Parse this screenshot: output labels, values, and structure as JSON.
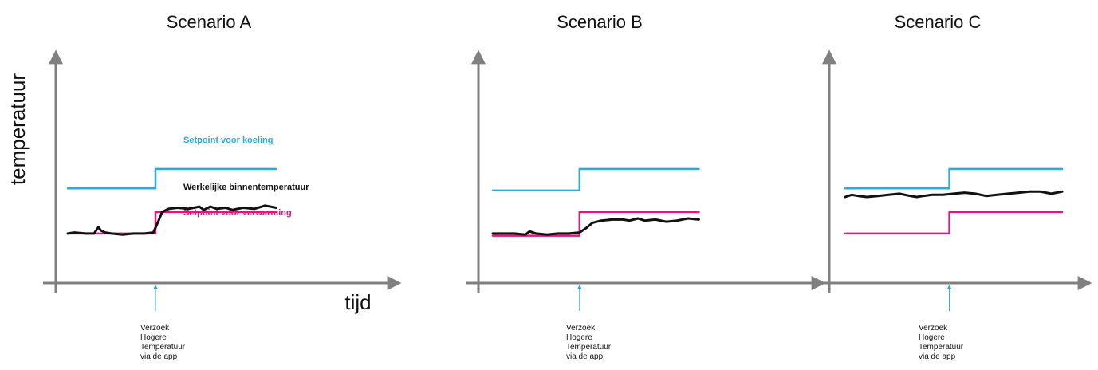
{
  "colors": {
    "axis": "#808080",
    "cooling": "#29abe2",
    "heating": "#e6157a",
    "actual": "#111111",
    "request": "#29abe2"
  },
  "y_axis_label": "temperatuur",
  "x_axis_label": "tijd",
  "request_label": [
    "Verzoek",
    "Hogere",
    "Temperatuur",
    "via de app"
  ],
  "legend_labels": {
    "cooling": "Setpoint voor koeling",
    "actual": "Werkelijke binnentemperatuur",
    "heating": "Setpoint voor verwarming"
  },
  "chart_data": [
    {
      "type": "line",
      "title": "Scenario A",
      "xlim": [
        0,
        10
      ],
      "ylim": [
        0,
        10
      ],
      "request_x": 4.0,
      "series": [
        {
          "name": "Setpoint voor koeling",
          "role": "cooling",
          "x": [
            0,
            4.0,
            4.0,
            9.5
          ],
          "y": [
            4.4,
            4.4,
            5.3,
            5.3
          ]
        },
        {
          "name": "Setpoint voor verwarming",
          "role": "heating",
          "x": [
            0,
            4.0,
            4.0,
            9.5
          ],
          "y": [
            2.3,
            2.3,
            3.3,
            3.3
          ]
        },
        {
          "name": "Werkelijke binnentemperatuur",
          "role": "actual",
          "x": [
            0,
            0.3,
            0.8,
            1.2,
            1.4,
            1.5,
            1.7,
            2.0,
            2.5,
            3.0,
            3.5,
            3.9,
            4.1,
            4.3,
            4.6,
            5.0,
            5.5,
            6.0,
            6.2,
            6.5,
            6.8,
            7.2,
            7.5,
            8.0,
            8.5,
            9.0,
            9.5
          ],
          "y": [
            2.3,
            2.35,
            2.3,
            2.3,
            2.6,
            2.45,
            2.35,
            2.3,
            2.25,
            2.3,
            2.3,
            2.35,
            2.8,
            3.3,
            3.45,
            3.5,
            3.45,
            3.55,
            3.4,
            3.55,
            3.45,
            3.5,
            3.4,
            3.5,
            3.45,
            3.6,
            3.5
          ]
        }
      ]
    },
    {
      "type": "line",
      "title": "Scenario B",
      "xlim": [
        0,
        10
      ],
      "ylim": [
        0,
        10
      ],
      "request_x": 4.0,
      "series": [
        {
          "role": "cooling",
          "x": [
            0,
            4.0,
            4.0,
            9.5
          ],
          "y": [
            4.3,
            4.3,
            5.3,
            5.3
          ]
        },
        {
          "role": "heating",
          "x": [
            0,
            4.0,
            4.0,
            9.5
          ],
          "y": [
            2.2,
            2.2,
            3.3,
            3.3
          ]
        },
        {
          "role": "actual",
          "x": [
            0,
            0.5,
            1.0,
            1.5,
            1.7,
            2.0,
            2.5,
            3.0,
            3.5,
            4.0,
            4.3,
            4.6,
            5.0,
            5.5,
            6.0,
            6.3,
            6.7,
            7.0,
            7.5,
            8.0,
            8.5,
            9.0,
            9.5
          ],
          "y": [
            2.3,
            2.3,
            2.3,
            2.25,
            2.4,
            2.3,
            2.25,
            2.3,
            2.3,
            2.35,
            2.55,
            2.8,
            2.9,
            2.95,
            2.95,
            2.9,
            3.0,
            2.9,
            2.95,
            2.85,
            2.9,
            3.0,
            2.95
          ]
        }
      ]
    },
    {
      "type": "line",
      "title": "Scenario C",
      "xlim": [
        0,
        10
      ],
      "ylim": [
        0,
        10
      ],
      "request_x": 4.8,
      "series": [
        {
          "role": "cooling",
          "x": [
            0,
            4.8,
            4.8,
            10
          ],
          "y": [
            4.4,
            4.4,
            5.3,
            5.3
          ]
        },
        {
          "role": "heating",
          "x": [
            0,
            4.8,
            4.8,
            10
          ],
          "y": [
            2.3,
            2.3,
            3.3,
            3.3
          ]
        },
        {
          "role": "actual",
          "x": [
            0,
            0.3,
            0.6,
            1.0,
            1.5,
            2.0,
            2.5,
            3.0,
            3.3,
            3.6,
            4.0,
            4.5,
            5.0,
            5.5,
            6.0,
            6.5,
            7.0,
            7.5,
            8.0,
            8.5,
            9.0,
            9.5,
            10
          ],
          "y": [
            4.0,
            4.1,
            4.05,
            4.0,
            4.05,
            4.1,
            4.15,
            4.05,
            4.0,
            4.05,
            4.1,
            4.1,
            4.15,
            4.2,
            4.15,
            4.05,
            4.1,
            4.15,
            4.2,
            4.25,
            4.25,
            4.15,
            4.25
          ]
        }
      ]
    }
  ]
}
